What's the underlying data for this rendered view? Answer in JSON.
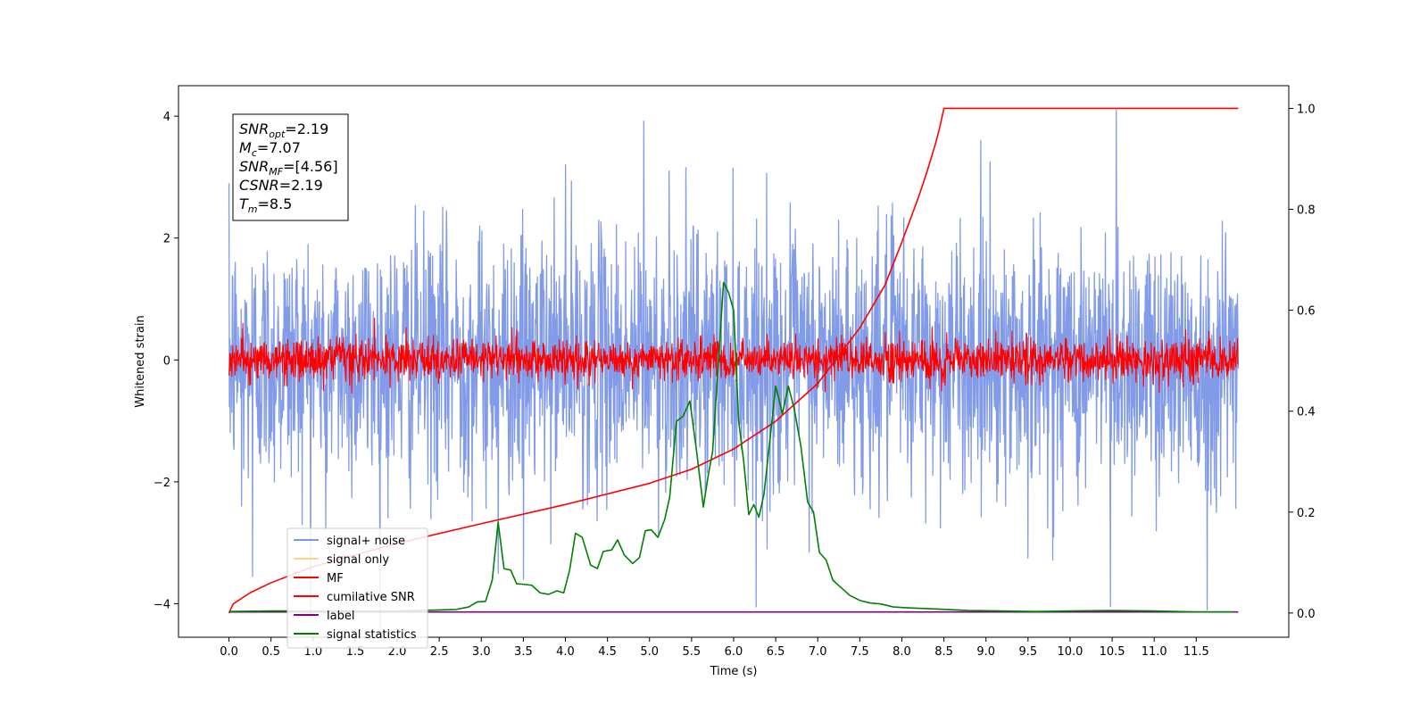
{
  "chart_data": {
    "type": "line",
    "xlabel": "Time (s)",
    "ylabel": "Whitened strain",
    "xlim": [
      -0.6,
      12.6
    ],
    "ylim": [
      -4.55,
      4.5
    ],
    "y2lim": [
      -0.048,
      1.045
    ],
    "xticks": [
      0.0,
      0.5,
      1.0,
      1.5,
      2.0,
      2.5,
      3.0,
      3.5,
      4.0,
      4.5,
      5.0,
      5.5,
      6.0,
      6.5,
      7.0,
      7.5,
      8.0,
      8.5,
      9.0,
      9.5,
      10.0,
      10.5,
      11.0,
      11.5
    ],
    "xtick_labels": [
      "0.0",
      "0.5",
      "1.0",
      "1.5",
      "2.0",
      "2.5",
      "3.0",
      "3.5",
      "4.0",
      "4.5",
      "5.0",
      "5.5",
      "6.0",
      "6.5",
      "7.0",
      "7.5",
      "8.0",
      "8.5",
      "9.0",
      "9.5",
      "10.0",
      "10.5",
      "11.0",
      "11.5"
    ],
    "yticks": [
      -4,
      -2,
      0,
      2,
      4
    ],
    "ytick_labels": [
      "−4",
      "−2",
      "0",
      "2",
      "4"
    ],
    "y2ticks": [
      0.0,
      0.2,
      0.4,
      0.6,
      0.8,
      1.0
    ],
    "y2tick_labels": [
      "0.0",
      "0.2",
      "0.4",
      "0.6",
      "0.8",
      "1.0"
    ],
    "annotation": {
      "lines": [
        {
          "main": "SNR",
          "sub": "opt",
          "rest": "=2.19"
        },
        {
          "main": "M",
          "sub": "c",
          "rest": "=7.07"
        },
        {
          "main": "SNR",
          "sub": "MF",
          "rest": "=[4.56]"
        },
        {
          "main": "CSNR",
          "sub": "",
          "rest": "=2.19"
        },
        {
          "main": "T",
          "sub": "m",
          "rest": "=8.5"
        }
      ]
    },
    "legend": {
      "placement": "lower-left",
      "entries": [
        {
          "label": "signal+ noise",
          "color": "#7b96e8"
        },
        {
          "label": "signal only",
          "color": "#ffd27f"
        },
        {
          "label": "MF",
          "color": "#ff0000"
        },
        {
          "label": "cumilative SNR",
          "color": "#ff0000"
        },
        {
          "label": "label",
          "color": "#800080"
        },
        {
          "label": "signal statistics",
          "color": "#008000"
        }
      ]
    },
    "series": [
      {
        "name": "signal+ noise",
        "axis": "left",
        "style": "noise",
        "color": "#7b96e8",
        "x_range": [
          0.0,
          12.0
        ],
        "std": 1.05,
        "spikes": [
          [
            0.0,
            2.9
          ],
          [
            0.15,
            -2.4
          ],
          [
            0.28,
            -3.55
          ],
          [
            1.15,
            -2.8
          ],
          [
            3.2,
            -3.5
          ],
          [
            3.5,
            -3.6
          ],
          [
            4.0,
            3.2
          ],
          [
            4.93,
            3.92
          ],
          [
            5.23,
            3.1
          ],
          [
            6.4,
            -3.1
          ],
          [
            9.5,
            -3.25
          ],
          [
            10.48,
            -4.05
          ],
          [
            10.55,
            4.1
          ],
          [
            11.63,
            -4.1
          ],
          [
            9.05,
            3.25
          ]
        ]
      },
      {
        "name": "MF",
        "axis": "left",
        "style": "noise",
        "color": "#ff0000",
        "x_range": [
          0.0,
          12.0
        ],
        "std": 0.17
      },
      {
        "name": "cumilative SNR",
        "axis": "right",
        "color": "#ff0000",
        "x": [
          0.0,
          0.05,
          0.25,
          0.5,
          1.0,
          2.0,
          3.0,
          4.0,
          5.0,
          5.5,
          6.0,
          6.5,
          7.0,
          7.5,
          7.8,
          8.0,
          8.2,
          8.3,
          8.4,
          8.45,
          8.5,
          12.0
        ],
        "values": [
          0.0,
          0.018,
          0.04,
          0.06,
          0.092,
          0.138,
          0.177,
          0.215,
          0.257,
          0.285,
          0.325,
          0.38,
          0.455,
          0.565,
          0.65,
          0.735,
          0.825,
          0.875,
          0.93,
          0.962,
          1.0,
          1.0
        ]
      },
      {
        "name": "label",
        "axis": "right",
        "color": "#800080",
        "x": [
          0.0,
          12.0
        ],
        "values": [
          0.002,
          0.002
        ]
      },
      {
        "name": "signal statistics",
        "axis": "right",
        "color": "#008000",
        "x": [
          0.0,
          0.5,
          1.0,
          1.5,
          2.0,
          2.5,
          2.7,
          2.85,
          2.95,
          3.05,
          3.13,
          3.2,
          3.27,
          3.35,
          3.42,
          3.5,
          3.6,
          3.7,
          3.8,
          3.9,
          3.98,
          4.05,
          4.12,
          4.2,
          4.3,
          4.38,
          4.45,
          4.55,
          4.62,
          4.7,
          4.8,
          4.88,
          4.95,
          5.02,
          5.1,
          5.18,
          5.24,
          5.32,
          5.4,
          5.48,
          5.56,
          5.64,
          5.7,
          5.75,
          5.82,
          5.88,
          5.94,
          6.0,
          6.06,
          6.12,
          6.18,
          6.24,
          6.3,
          6.36,
          6.42,
          6.5,
          6.58,
          6.65,
          6.72,
          6.8,
          6.88,
          6.95,
          7.02,
          7.1,
          7.18,
          7.28,
          7.38,
          7.5,
          7.62,
          7.75,
          7.9,
          8.1,
          8.4,
          8.8,
          9.2,
          9.6,
          10.0,
          10.5,
          11.0,
          11.5,
          11.95
        ],
        "values": [
          0.003,
          0.004,
          0.004,
          0.004,
          0.004,
          0.006,
          0.007,
          0.012,
          0.022,
          0.023,
          0.065,
          0.18,
          0.088,
          0.085,
          0.058,
          0.057,
          0.055,
          0.04,
          0.037,
          0.044,
          0.04,
          0.085,
          0.158,
          0.15,
          0.095,
          0.088,
          0.122,
          0.125,
          0.145,
          0.115,
          0.098,
          0.11,
          0.163,
          0.165,
          0.15,
          0.185,
          0.23,
          0.38,
          0.39,
          0.42,
          0.32,
          0.21,
          0.275,
          0.32,
          0.5,
          0.655,
          0.635,
          0.6,
          0.38,
          0.3,
          0.195,
          0.215,
          0.19,
          0.235,
          0.325,
          0.45,
          0.395,
          0.45,
          0.405,
          0.33,
          0.22,
          0.2,
          0.12,
          0.105,
          0.065,
          0.05,
          0.035,
          0.025,
          0.02,
          0.018,
          0.012,
          0.01,
          0.008,
          0.005,
          0.004,
          0.003,
          0.004,
          0.005,
          0.004,
          0.002,
          0.002
        ]
      }
    ]
  }
}
